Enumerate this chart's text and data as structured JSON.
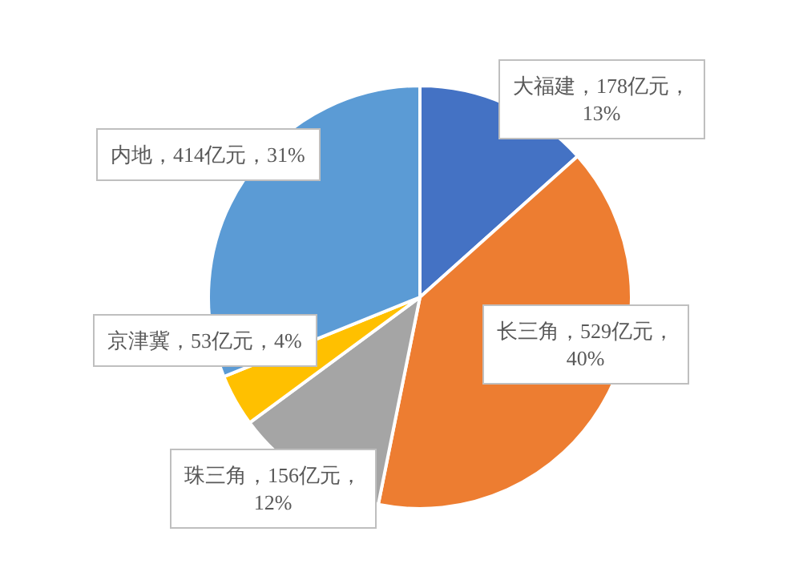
{
  "chart_data": {
    "type": "pie",
    "categories": [
      "大福建",
      "长三角",
      "珠三角",
      "京津冀",
      "内地"
    ],
    "values": [
      178,
      529,
      156,
      53,
      414
    ],
    "colors": [
      "#4472c4",
      "#ed7d31",
      "#a5a5a5",
      "#ffc000",
      "#5b9bd5"
    ],
    "value_labels": [
      "178亿元，13%",
      "529亿元，40%",
      "156亿元，12%",
      "53亿元，4%",
      "414亿元，31%"
    ],
    "legend": false
  }
}
